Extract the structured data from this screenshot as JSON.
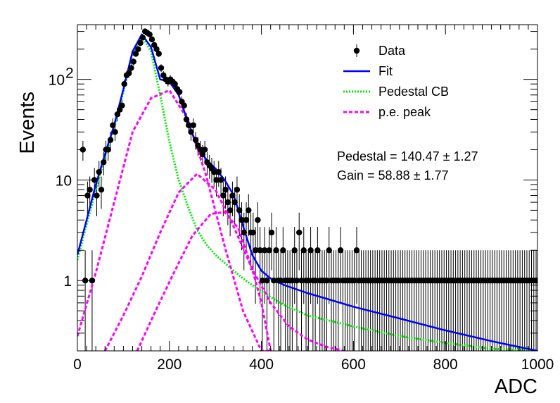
{
  "chart_data": {
    "type": "scatter",
    "xlabel": "ADC",
    "ylabel": "Events",
    "xlim": [
      0,
      1000
    ],
    "ylim": [
      0.2,
      350
    ],
    "log_y": true,
    "grid": false,
    "legend_position": "top-right",
    "x_ticks": [
      "0",
      "200",
      "400",
      "600",
      "800",
      "1000"
    ],
    "y_ticks": [
      "1",
      "10",
      "10"
    ],
    "y_tick_sup": [
      "",
      "",
      "2"
    ],
    "legend": [
      {
        "label": "Data",
        "style": "marker",
        "color": "#000000"
      },
      {
        "label": "Fit",
        "style": "solid",
        "color": "#0000ff"
      },
      {
        "label": "Pedestal CB",
        "style": "dotted",
        "color": "#00ee00"
      },
      {
        "label": "p.e. peak",
        "style": "dashed",
        "color": "#ff00ff"
      }
    ],
    "annotations": [
      {
        "text": "Pedestal = 140.47 ± 1.27"
      },
      {
        "text": "Gain = 58.88 ± 1.77"
      }
    ],
    "series": [
      {
        "name": "Data",
        "kind": "points",
        "color": "#000000",
        "x": [
          12,
          17,
          22,
          27,
          32,
          37,
          42,
          47,
          52,
          57,
          62,
          67,
          72,
          77,
          82,
          87,
          92,
          97,
          102,
          107,
          112,
          117,
          122,
          127,
          132,
          137,
          142,
          147,
          152,
          157,
          162,
          167,
          172,
          177,
          182,
          187,
          192,
          197,
          202,
          207,
          212,
          217,
          222,
          227,
          232,
          237,
          242,
          247,
          252,
          257,
          262,
          267,
          272,
          277,
          282,
          287,
          292,
          297,
          302,
          307,
          312,
          317,
          322,
          327,
          332,
          337,
          342,
          347,
          352,
          357,
          362,
          367,
          372,
          377,
          382,
          387,
          392,
          397,
          402,
          407,
          412,
          417,
          422,
          427,
          432,
          437,
          442,
          447,
          452,
          457,
          462,
          467,
          472,
          477,
          482,
          487,
          492,
          497,
          502,
          507,
          512,
          517,
          522,
          527,
          532,
          537,
          542,
          547,
          552,
          557,
          562,
          567,
          572,
          577,
          582,
          587,
          592,
          597,
          602,
          607,
          612,
          617,
          622,
          627,
          632,
          637,
          642,
          647,
          652,
          657,
          662,
          667,
          672,
          677,
          682,
          687,
          692,
          697,
          702,
          707,
          712,
          717,
          722,
          727,
          732,
          737,
          742,
          747,
          752,
          757,
          762,
          767,
          772,
          777,
          782,
          787,
          792,
          797,
          802,
          807,
          812,
          817,
          822,
          827,
          832,
          837,
          842,
          847,
          852,
          857,
          862,
          867,
          872,
          877,
          882,
          887,
          892,
          897,
          902,
          907,
          912,
          917,
          922,
          927,
          932,
          937,
          942,
          947,
          952,
          957,
          962,
          967,
          972,
          977,
          982,
          987,
          992,
          997
        ],
        "y": [
          20,
          1,
          7,
          8,
          1,
          10,
          7,
          12,
          8,
          15,
          20,
          20,
          25,
          35,
          30,
          45,
          50,
          55,
          90,
          110,
          115,
          130,
          150,
          180,
          200,
          230,
          260,
          300,
          290,
          280,
          250,
          220,
          200,
          180,
          130,
          110,
          100,
          95,
          100,
          95,
          90,
          80,
          75,
          60,
          55,
          40,
          35,
          30,
          35,
          25,
          22,
          20,
          18,
          20,
          15,
          14,
          13,
          12,
          10,
          12,
          10,
          7,
          8,
          6,
          5,
          7,
          6,
          8,
          5,
          4,
          3,
          4,
          5,
          3,
          3,
          2,
          4,
          2,
          1,
          2,
          1,
          2,
          3,
          1,
          2,
          1,
          1,
          2,
          1,
          1,
          1,
          1,
          2,
          1,
          3,
          1,
          2,
          1,
          1,
          2,
          1,
          1,
          2,
          1,
          1,
          1,
          1,
          2,
          1,
          1,
          1,
          1,
          2,
          1,
          1,
          1,
          1,
          1,
          1,
          2,
          1,
          1,
          1,
          1,
          1,
          1,
          1,
          1,
          1,
          1,
          1,
          1,
          1,
          1,
          1,
          1,
          1,
          1,
          1,
          1,
          1,
          1,
          1,
          1,
          1,
          1,
          1,
          1,
          1,
          1,
          1,
          1,
          1,
          1,
          1,
          1,
          1,
          1,
          1,
          1,
          1,
          1,
          1,
          1,
          1,
          1,
          1,
          1,
          1,
          1,
          1,
          1,
          1,
          1,
          1,
          1,
          1,
          1,
          1,
          1,
          1,
          1,
          1,
          1,
          1,
          1,
          1,
          1,
          1,
          1,
          1,
          1,
          1,
          1,
          1,
          1,
          1,
          1
        ]
      },
      {
        "name": "Fit",
        "kind": "curve",
        "color": "#0000ff",
        "x": [
          0,
          20,
          40,
          60,
          80,
          100,
          120,
          140,
          160,
          180,
          200,
          220,
          240,
          260,
          280,
          300,
          320,
          340,
          360,
          380,
          400,
          420,
          450,
          500,
          600,
          700,
          800,
          900,
          1000
        ],
        "y": [
          1.8,
          4,
          9,
          18,
          35,
          80,
          190,
          280,
          210,
          100,
          95,
          70,
          38,
          22,
          16,
          13,
          10,
          7,
          3.5,
          1.8,
          1.25,
          1.05,
          0.9,
          0.75,
          0.55,
          0.42,
          0.32,
          0.25,
          0.2
        ]
      },
      {
        "name": "Pedestal CB",
        "kind": "curve",
        "color": "#00ee00",
        "x": [
          0,
          20,
          40,
          60,
          80,
          100,
          120,
          140,
          160,
          180,
          200,
          220,
          240,
          260,
          280,
          300,
          320,
          340,
          360,
          380,
          400,
          440,
          500,
          600,
          700,
          800,
          900,
          1000
        ],
        "y": [
          1.6,
          3.6,
          8,
          17,
          33,
          75,
          180,
          270,
          190,
          70,
          24,
          10,
          5.5,
          3.2,
          2.3,
          1.8,
          1.5,
          1.25,
          1.05,
          0.9,
          0.78,
          0.6,
          0.45,
          0.35,
          0.28,
          0.24,
          0.21,
          0.2
        ]
      },
      {
        "name": "p.e. peak 1",
        "kind": "curve",
        "color": "#ff00ff",
        "x": [
          0,
          40,
          80,
          120,
          160,
          200,
          240,
          280,
          320,
          360,
          400,
          420
        ],
        "y": [
          0.28,
          1.2,
          6,
          30,
          65,
          78,
          40,
          11,
          2.2,
          0.5,
          0.2,
          0.2
        ]
      },
      {
        "name": "p.e. peak 2",
        "kind": "curve",
        "color": "#ff00ff",
        "x": [
          60,
          100,
          140,
          180,
          220,
          260,
          300,
          340,
          380,
          420,
          460,
          500,
          540,
          580
        ],
        "y": [
          0.2,
          0.45,
          1.1,
          3,
          7.5,
          11.5,
          8,
          3.4,
          1.3,
          0.6,
          0.35,
          0.26,
          0.22,
          0.2
        ]
      },
      {
        "name": "p.e. peak 3",
        "kind": "curve",
        "color": "#ff00ff",
        "x": [
          130,
          170,
          210,
          250,
          290,
          320,
          350,
          380,
          400,
          420
        ],
        "y": [
          0.2,
          0.5,
          1.2,
          2.8,
          4.6,
          4.8,
          3.3,
          1.3,
          0.6,
          0.2
        ]
      }
    ]
  }
}
